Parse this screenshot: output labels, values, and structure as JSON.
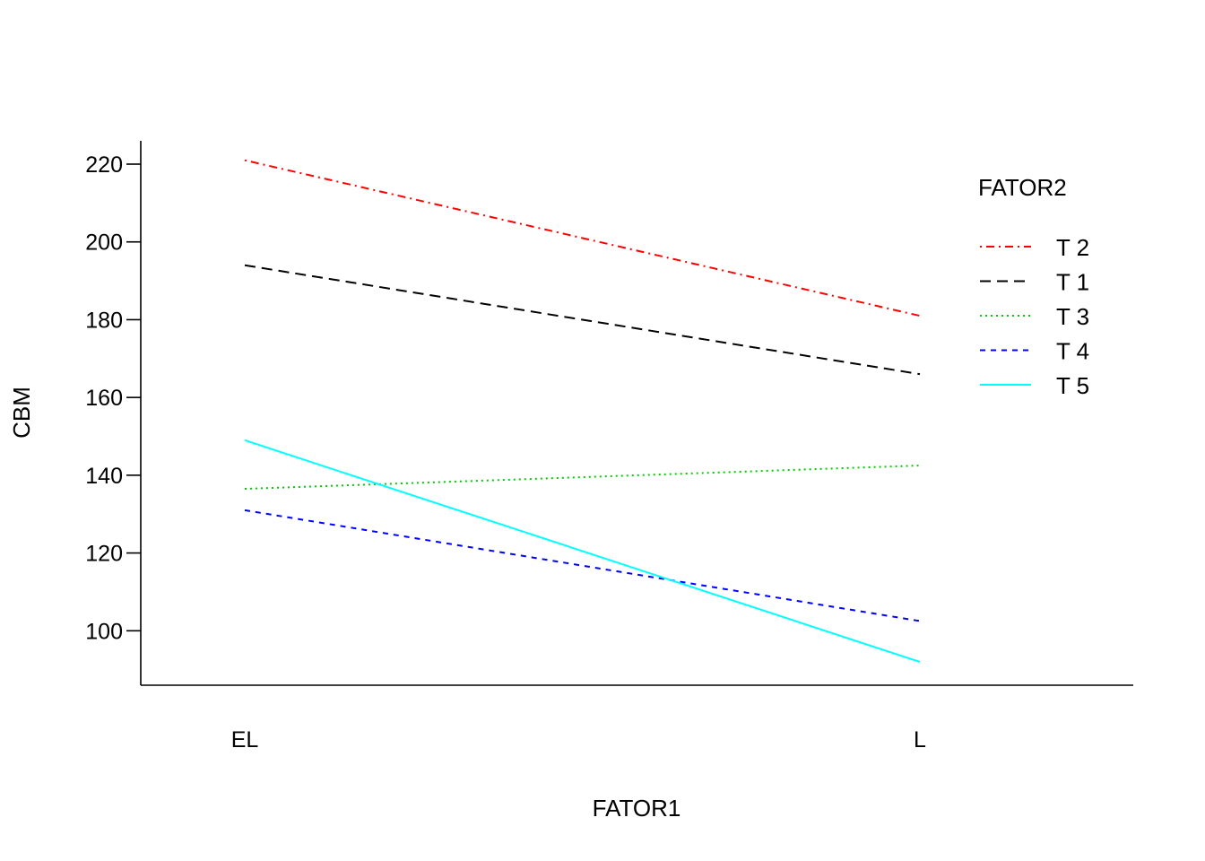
{
  "chart_data": {
    "type": "line",
    "xlabel": "FATOR1",
    "ylabel": "CBM",
    "categories": [
      "EL",
      "L"
    ],
    "ylim": [
      86,
      226
    ],
    "yticks": [
      100,
      120,
      140,
      160,
      180,
      200,
      220
    ],
    "legend": {
      "title": "FATOR2",
      "placement": "top-right"
    },
    "series": [
      {
        "name": "T 2",
        "values": [
          221,
          181
        ],
        "color": "#ff0000",
        "dash": "dotdash"
      },
      {
        "name": "T 1",
        "values": [
          194,
          166
        ],
        "color": "#000000",
        "dash": "longdash"
      },
      {
        "name": "T 3",
        "values": [
          136.5,
          142.5
        ],
        "color": "#00cd00",
        "dash": "dotted"
      },
      {
        "name": "T 4",
        "values": [
          131,
          102.5
        ],
        "color": "#0000ff",
        "dash": "dashed"
      },
      {
        "name": "T 5",
        "values": [
          149,
          92
        ],
        "color": "#00ffff",
        "dash": "solid"
      }
    ]
  }
}
